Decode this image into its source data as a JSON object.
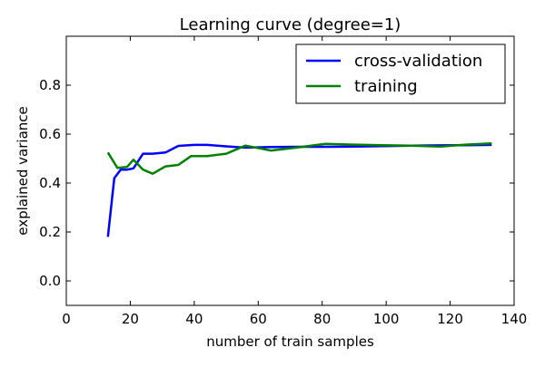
{
  "chart_data": {
    "type": "line",
    "title": "Learning curve (degree=1)",
    "xlabel": "number of train samples",
    "ylabel": "explained variance",
    "xlim": [
      0,
      140
    ],
    "ylim": [
      -0.1,
      1.0
    ],
    "xticks": [
      0,
      20,
      40,
      60,
      80,
      100,
      120,
      140
    ],
    "xtick_labels": [
      "0",
      "20",
      "40",
      "60",
      "80",
      "100",
      "120",
      "140"
    ],
    "yticks": [
      0.0,
      0.2,
      0.4,
      0.6,
      0.8
    ],
    "ytick_labels": [
      "0.0",
      "0.2",
      "0.4",
      "0.6",
      "0.8"
    ],
    "grid": false,
    "legend_position": "top-right",
    "series": [
      {
        "name": "cross-validation",
        "color": "#0000ff",
        "x": [
          13,
          15,
          17,
          19,
          21,
          24,
          27,
          31,
          35,
          40,
          44,
          50,
          56,
          64,
          72,
          81,
          90,
          99,
          108,
          117,
          125,
          133
        ],
        "y": [
          0.18,
          0.42,
          0.455,
          0.455,
          0.46,
          0.52,
          0.52,
          0.525,
          0.552,
          0.556,
          0.556,
          0.55,
          0.545,
          0.547,
          0.548,
          0.548,
          0.549,
          0.551,
          0.553,
          0.554,
          0.555,
          0.556
        ]
      },
      {
        "name": "training",
        "color": "#008000",
        "x": [
          13,
          16,
          19,
          21,
          24,
          27,
          31,
          35,
          39,
          44,
          50,
          56,
          64,
          72,
          81,
          90,
          99,
          108,
          117,
          125,
          133
        ],
        "y": [
          0.525,
          0.462,
          0.466,
          0.495,
          0.455,
          0.438,
          0.468,
          0.474,
          0.51,
          0.51,
          0.52,
          0.553,
          0.533,
          0.545,
          0.56,
          0.557,
          0.555,
          0.553,
          0.549,
          0.557,
          0.562
        ]
      }
    ]
  }
}
